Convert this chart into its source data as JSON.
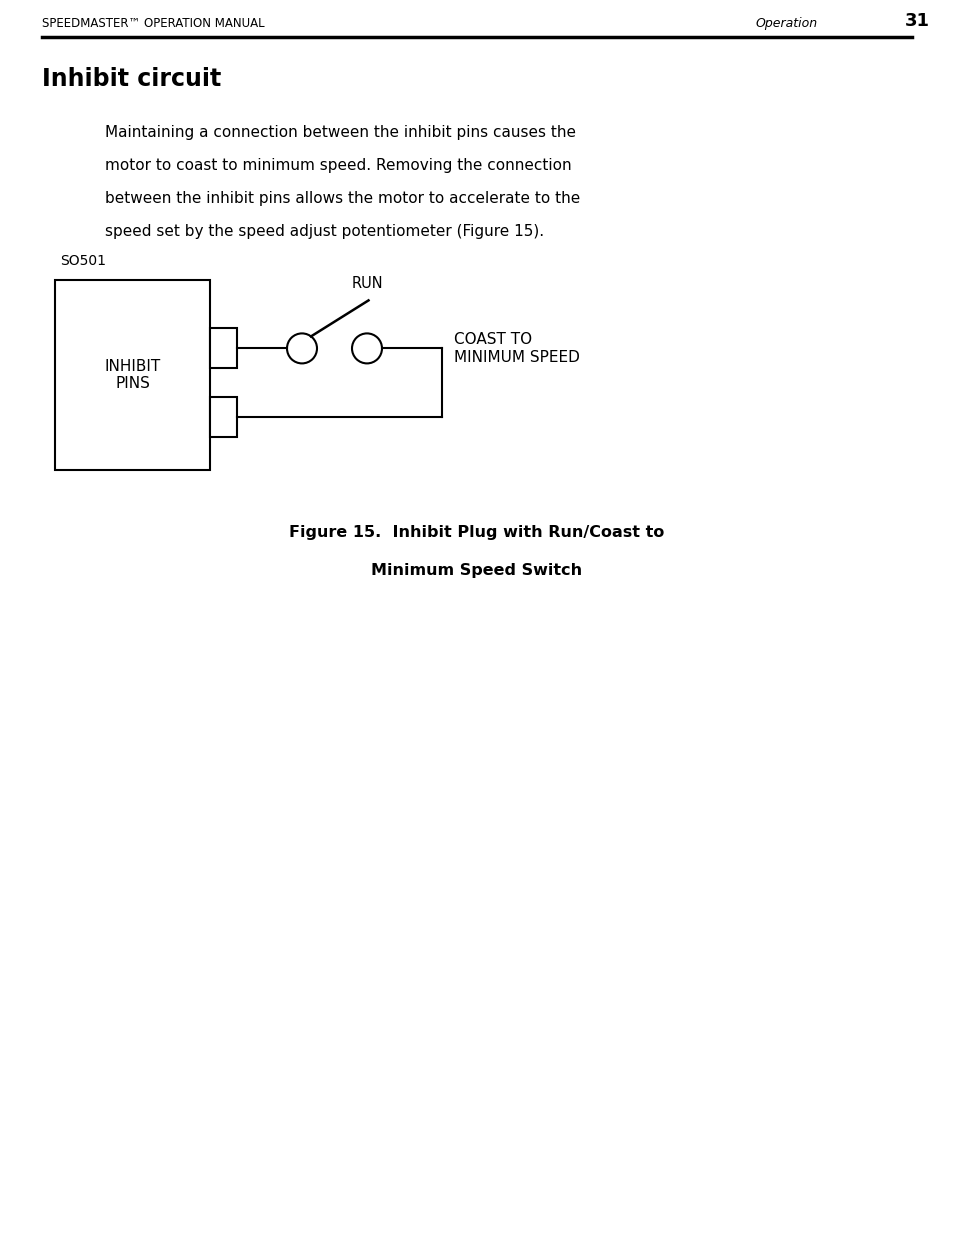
{
  "bg_color": "#ffffff",
  "page_width": 9.54,
  "page_height": 12.35,
  "header_left": "SPEEDMASTER™ OPERATION MANUAL",
  "header_right_label": "Operation",
  "header_right_num": "31",
  "section_title": "Inhibit circuit",
  "body_text_lines": [
    "Maintaining a connection between the inhibit pins causes the",
    "motor to coast to minimum speed. Removing the connection",
    "between the inhibit pins allows the motor to accelerate to the",
    "speed set by the speed adjust potentiometer (Figure 15)."
  ],
  "so501_label": "SO501",
  "run_label": "RUN",
  "inhibit_label": "INHIBIT\nPINS",
  "coast_label": "COAST TO\nMINIMUM SPEED",
  "figure_caption_line1": "Figure 15.  Inhibit Plug with Run/Coast to",
  "figure_caption_line2": "Minimum Speed Switch",
  "line_color": "#000000",
  "text_color": "#000000"
}
